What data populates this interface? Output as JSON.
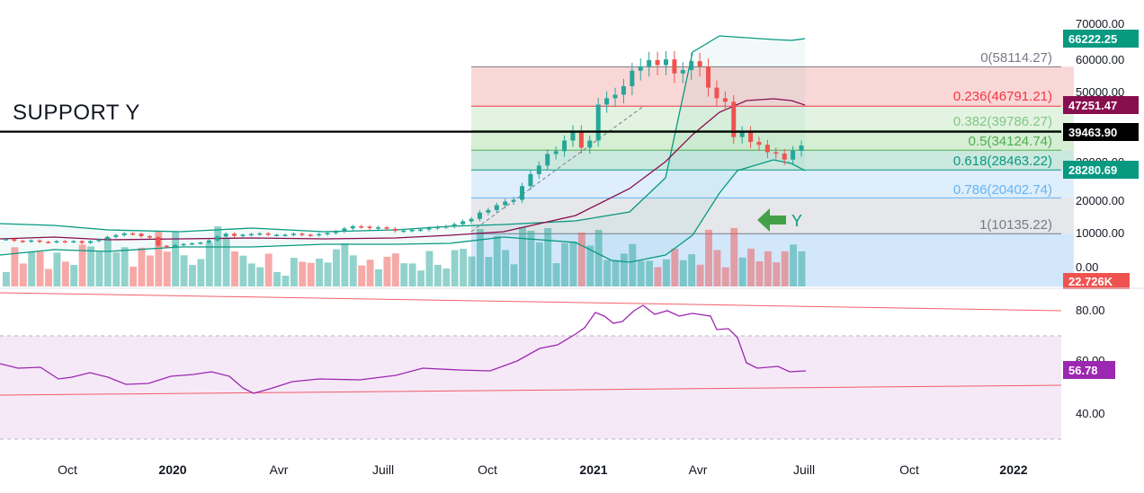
{
  "annotations": {
    "support_label": "SUPPORT Y",
    "y_marker": "Y"
  },
  "price_axis": {
    "ticks": [
      "70000.00",
      "60000.00",
      "50000.00",
      "40000.00",
      "30000.00",
      "20000.00",
      "10000.00",
      "0.00"
    ],
    "badges": {
      "upper_band": "66222.25",
      "sma": "47251.47",
      "support": "39463.90",
      "lower_band": "28280.69",
      "volume": "22.726K"
    }
  },
  "rsi_axis": {
    "ticks": [
      "80.00",
      "60.00",
      "40.00"
    ],
    "badge": "56.78"
  },
  "time_axis": {
    "labels": [
      "Oct",
      "2020",
      "Avr",
      "Juill",
      "Oct",
      "2021",
      "Avr",
      "Juill",
      "Oct",
      "2022"
    ]
  },
  "colors": {
    "bull": "#26a69a",
    "bear": "#ef5350",
    "band": "#089981",
    "sma": "#880e4f",
    "rsi": "#9c27b0",
    "support_line": "#000000"
  },
  "chart_data": {
    "type": "candlestick",
    "price_scale": "linear",
    "ylim": [
      -3000,
      75000
    ],
    "fibonacci": [
      {
        "label": "0(58114.27)",
        "level": 58114.27,
        "color": "#787b86"
      },
      {
        "label": "0.236(46791.21)",
        "level": 46791.21,
        "color": "#f23645"
      },
      {
        "label": "0.382(39786.27)",
        "level": 39786.27,
        "color": "#81c784"
      },
      {
        "label": "0.5(34124.74)",
        "level": 34124.74,
        "color": "#4caf50"
      },
      {
        "label": "0.618(28463.22)",
        "level": 28463.22,
        "color": "#089981"
      },
      {
        "label": "0.786(20402.74)",
        "level": 20402.74,
        "color": "#64b5f6"
      },
      {
        "label": "1(10135.22)",
        "level": 10135.22,
        "color": "#787b86"
      }
    ],
    "support_level": 39463.9,
    "close": [
      8100,
      7600,
      7400,
      7700,
      7300,
      7200,
      7500,
      7300,
      7500,
      7000,
      7500,
      8000,
      8700,
      9200,
      9700,
      9600,
      8900,
      8600,
      6200,
      5800,
      6400,
      6700,
      6900,
      7100,
      7700,
      8800,
      9600,
      9000,
      9300,
      9500,
      9700,
      9300,
      9300,
      9300,
      9600,
      9300,
      9200,
      9500,
      9800,
      10300,
      11100,
      11700,
      11600,
      11200,
      11400,
      11000,
      10400,
      10500,
      10700,
      10800,
      11300,
      11500,
      11700,
      12300,
      13100,
      13800,
      15600,
      16300,
      17700,
      18700,
      19200,
      23100,
      26500,
      28900,
      32200,
      33000,
      36000,
      38800,
      34000,
      36000,
      46200,
      48000,
      49000,
      51400,
      55800,
      57000,
      58800,
      57400,
      59000,
      55000,
      56000,
      58500,
      57000,
      51000,
      48000,
      47000,
      37000,
      38500,
      35600,
      34800,
      32700,
      32300,
      30600,
      33100,
      34600
    ]
  }
}
